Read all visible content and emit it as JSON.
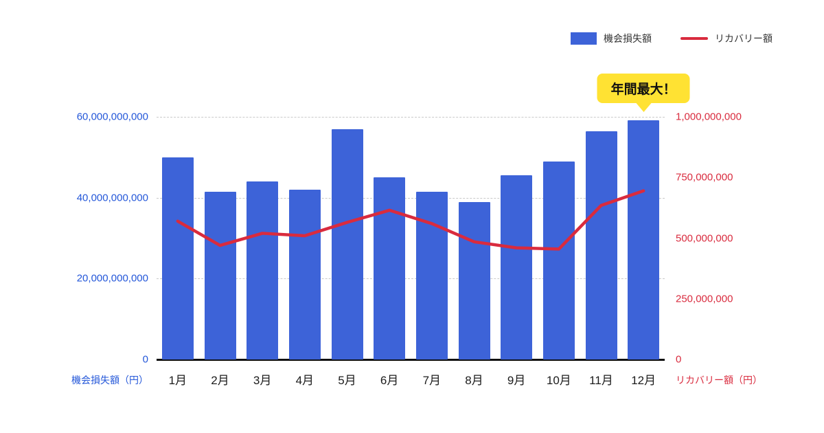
{
  "legend": {
    "items": [
      {
        "label": "機会損失額",
        "swatch": "bar",
        "color": "#3D63D8"
      },
      {
        "label": "リカバリー額",
        "swatch": "line",
        "color": "#D92B3E"
      }
    ]
  },
  "chart_data": {
    "type": "bar",
    "categories": [
      "1月",
      "2月",
      "3月",
      "4月",
      "5月",
      "6月",
      "7月",
      "8月",
      "9月",
      "10月",
      "11月",
      "12月"
    ],
    "series": [
      {
        "name": "機会損失額",
        "kind": "bar",
        "axis": "left",
        "color": "#3D63D8",
        "values": [
          50000000000,
          41500000000,
          44000000000,
          42000000000,
          57000000000,
          45000000000,
          41500000000,
          39000000000,
          45500000000,
          49000000000,
          56500000000,
          59200000000
        ]
      },
      {
        "name": "リカバリー額",
        "kind": "line",
        "axis": "right",
        "color": "#D92B3E",
        "values": [
          570000000,
          470000000,
          520000000,
          510000000,
          565000000,
          615000000,
          560000000,
          485000000,
          460000000,
          455000000,
          635000000,
          695000000
        ]
      }
    ],
    "left_axis": {
      "caption": "機会損失額（円）",
      "color": "#2457D9",
      "max": 60000000000,
      "ticks": [
        {
          "value": 0,
          "label": "0"
        },
        {
          "value": 20000000000,
          "label": "20,000,000,000"
        },
        {
          "value": 40000000000,
          "label": "40,000,000,000"
        },
        {
          "value": 60000000000,
          "label": "60,000,000,000"
        }
      ]
    },
    "right_axis": {
      "caption": "リカバリー額（円）",
      "color": "#D92B3E",
      "max": 1000000000,
      "ticks": [
        {
          "value": 0,
          "label": "0"
        },
        {
          "value": 250000000,
          "label": "250,000,000"
        },
        {
          "value": 500000000,
          "label": "500,000,000"
        },
        {
          "value": 750000000,
          "label": "750,000,000"
        },
        {
          "value": 1000000000,
          "label": "1,000,000,000"
        }
      ]
    },
    "grid": {
      "horizontal_dashed": true
    },
    "legend_position": "top-right",
    "annotation": {
      "text": "年間最大！",
      "target": "12月",
      "color": "#FFE233"
    }
  }
}
